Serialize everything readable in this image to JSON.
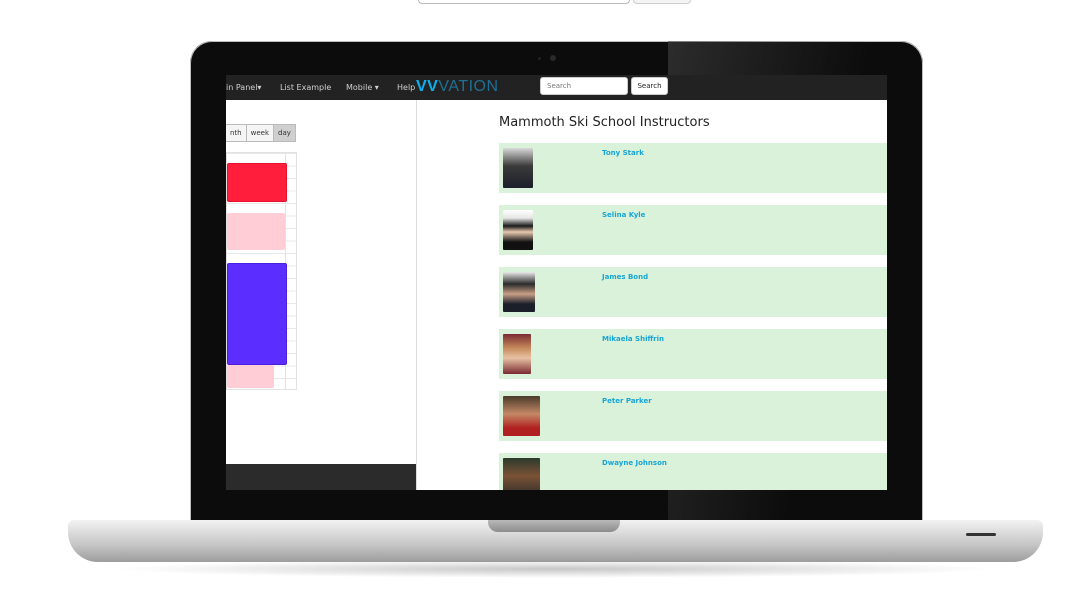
{
  "navbar": {
    "items": [
      {
        "label": "in Panel▾"
      },
      {
        "label": "List Example"
      },
      {
        "label": "Mobile ▾"
      },
      {
        "label": "Help"
      }
    ],
    "logo": {
      "bold": "VV",
      "thin": "VATION"
    },
    "search_placeholder": "Search",
    "search_button": "Search"
  },
  "calendar": {
    "views": [
      "nth",
      "week",
      "day"
    ],
    "active_view": "day",
    "event_colors": [
      "#ff1e3c",
      "#ffcdd6",
      "#5b2dff",
      "#ffcdd6"
    ]
  },
  "instructors": {
    "title": "Mammoth Ski School Instructors",
    "items": [
      {
        "name": "Tony Stark"
      },
      {
        "name": "Selina Kyle"
      },
      {
        "name": "James Bond"
      },
      {
        "name": "Mikaela Shiffrin"
      },
      {
        "name": "Peter Parker"
      },
      {
        "name": "Dwayne Johnson"
      }
    ]
  },
  "colors": {
    "row_background": "#d9f2d9",
    "name_link": "#17a5d8",
    "navbar": "#222222"
  }
}
